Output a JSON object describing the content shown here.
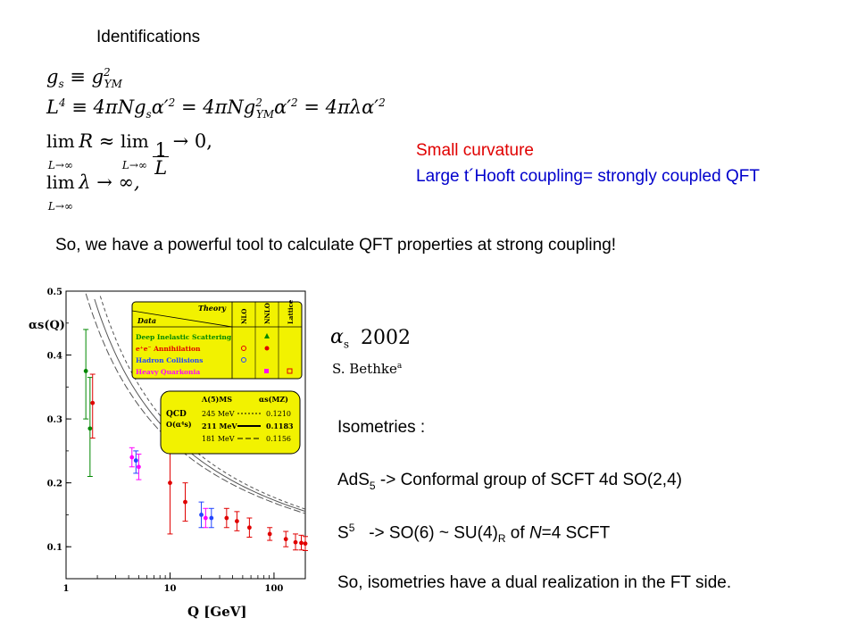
{
  "slide": {
    "title": "Identifications",
    "equations": [
      "g_s ≡ g²_YM",
      "L⁴ ≡ 4πN g_s α′² = 4πN g²_YM α′² = 4πλα′²",
      "lim_{L→∞} R ≈ lim_{L→∞} 1/L → 0,",
      "lim_{L→∞} λ → ∞,"
    ],
    "remark_red": "Small curvature",
    "remark_blue": "Large t´Hooft coupling= strongly coupled QFT",
    "summary": "So, we have a powerful tool to calculate QFT properties at strong coupling!",
    "ref_alpha": "2002",
    "ref_author": "S. Bethke",
    "isometries_title": "Isometries :",
    "ads": "AdS",
    "ads_sub": "5",
    "ads_rest": " -> Conformal group of SCFT 4d SO(2,4)",
    "s5": "S",
    "s5_sup": "5",
    "s5_rest1": "   -> SO(6) ~ SU(4)",
    "s5_sub": "R",
    "s5_rest2": " of ",
    "s5_N": "N",
    "s5_rest3": "=4 SCFT",
    "dual": "So, isometries have a dual realization in the FT side."
  },
  "chart_data": {
    "type": "scatter",
    "xlabel": "Q [GeV]",
    "ylabel": "αs(Q)",
    "xscale": "log",
    "xlim": [
      1,
      200
    ],
    "ylim": [
      0.05,
      0.5
    ],
    "yticks": [
      "0.1",
      "0.2",
      "0.3",
      "0.4",
      "0.5"
    ],
    "xticks": [
      "1",
      "10",
      "100"
    ],
    "legend_table": {
      "header_left": "Data",
      "header_right": "Theory",
      "columns": [
        "NLO",
        "NNLO",
        "Lattice"
      ],
      "rows": [
        "Deep Inelastic Scattering",
        "e⁺e⁻ Annihilation",
        "Hadron Collisions",
        "Heavy Quarkonia"
      ]
    },
    "qcd_box": {
      "label1": "QCD",
      "label2": "O(α⁴s)",
      "col1": "Λ(5)MS",
      "col2": "αs(MZ)",
      "rows": [
        {
          "lambda": "245 MeV",
          "alpha": "0.1210"
        },
        {
          "lambda": "211 MeV",
          "alpha": "0.1183"
        },
        {
          "lambda": "181 MeV",
          "alpha": "0.1156"
        }
      ]
    },
    "points": [
      {
        "q": 1.55,
        "a": 0.375,
        "lo": 0.3,
        "hi": 0.44,
        "color": "#008800",
        "series": "Deep Inelastic Scattering"
      },
      {
        "q": 1.7,
        "a": 0.285,
        "lo": 0.21,
        "hi": 0.365,
        "color": "#008800",
        "series": "Deep Inelastic Scattering"
      },
      {
        "q": 1.8,
        "a": 0.325,
        "lo": 0.27,
        "hi": 0.37,
        "color": "#e00000",
        "series": "e⁺e⁻ Annihilation"
      },
      {
        "q": 4.3,
        "a": 0.24,
        "lo": 0.225,
        "hi": 0.255,
        "color": "#ff00ff",
        "series": "Heavy Quarkonia"
      },
      {
        "q": 4.7,
        "a": 0.235,
        "lo": 0.215,
        "hi": 0.25,
        "color": "#2244ff",
        "series": "Hadron Collisions"
      },
      {
        "q": 5.0,
        "a": 0.225,
        "lo": 0.205,
        "hi": 0.245,
        "color": "#ff00ff",
        "series": "Heavy Quarkonia"
      },
      {
        "q": 10.0,
        "a": 0.2,
        "lo": 0.12,
        "hi": 0.28,
        "color": "#e00000",
        "series": "e⁺e⁻ Annihilation"
      },
      {
        "q": 14.0,
        "a": 0.17,
        "lo": 0.14,
        "hi": 0.2,
        "color": "#e00000",
        "series": "e⁺e⁻ Annihilation"
      },
      {
        "q": 20.0,
        "a": 0.15,
        "lo": 0.13,
        "hi": 0.17,
        "color": "#2244ff",
        "series": "Hadron Collisions"
      },
      {
        "q": 22.0,
        "a": 0.145,
        "lo": 0.13,
        "hi": 0.16,
        "color": "#ff00ff",
        "series": "Heavy Quarkonia"
      },
      {
        "q": 25.0,
        "a": 0.145,
        "lo": 0.13,
        "hi": 0.16,
        "color": "#2244ff",
        "series": "Hadron Collisions"
      },
      {
        "q": 35.0,
        "a": 0.145,
        "lo": 0.13,
        "hi": 0.16,
        "color": "#e00000",
        "series": "e⁺e⁻ Annihilation"
      },
      {
        "q": 44.0,
        "a": 0.14,
        "lo": 0.125,
        "hi": 0.155,
        "color": "#e00000",
        "series": "e⁺e⁻ Annihilation"
      },
      {
        "q": 58.0,
        "a": 0.13,
        "lo": 0.115,
        "hi": 0.145,
        "color": "#e00000",
        "series": "e⁺e⁻ Annihilation"
      },
      {
        "q": 91.0,
        "a": 0.12,
        "lo": 0.11,
        "hi": 0.13,
        "color": "#e00000",
        "series": "e⁺e⁻ Annihilation"
      },
      {
        "q": 130.0,
        "a": 0.112,
        "lo": 0.1,
        "hi": 0.124,
        "color": "#e00000",
        "series": "e⁺e⁻ Annihilation"
      },
      {
        "q": 161.0,
        "a": 0.107,
        "lo": 0.095,
        "hi": 0.12,
        "color": "#e00000",
        "series": "e⁺e⁻ Annihilation"
      },
      {
        "q": 183.0,
        "a": 0.106,
        "lo": 0.095,
        "hi": 0.118,
        "color": "#e00000",
        "series": "e⁺e⁻ Annihilation"
      },
      {
        "q": 200.0,
        "a": 0.105,
        "lo": 0.094,
        "hi": 0.116,
        "color": "#e00000",
        "series": "e⁺e⁻ Annihilation"
      }
    ],
    "curves": [
      {
        "name": "Λ = 245 MeV",
        "lambda": 0.245,
        "style": "dashed"
      },
      {
        "name": "Λ = 211 MeV",
        "lambda": 0.211,
        "style": "solid"
      },
      {
        "name": "Λ = 181 MeV",
        "lambda": 0.181,
        "style": "longdash"
      }
    ]
  }
}
